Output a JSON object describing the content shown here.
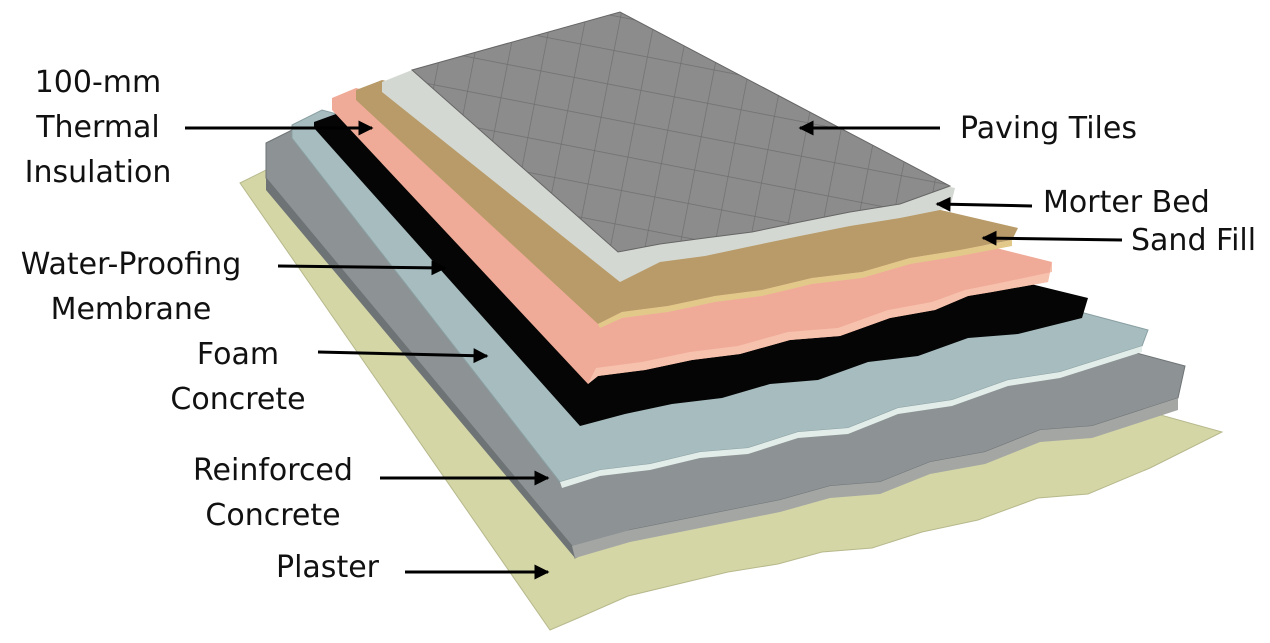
{
  "labels": {
    "thermal_insulation": [
      "100-mm",
      "Thermal",
      "Insulation"
    ],
    "paving_tiles": "Paving Tiles",
    "morter_bed": "Morter Bed",
    "sand_fill": "Sand Fill",
    "water_proofing": [
      "Water-Proofing",
      "Membrane"
    ],
    "foam_concrete": [
      "Foam",
      "Concrete"
    ],
    "reinforced_concrete": [
      "Reinforced",
      "Concrete"
    ],
    "plaster": "Plaster"
  },
  "colors": {
    "plaster": "#d4d6a6",
    "reinforced_concrete": "#858a8c",
    "foam_concrete": "#9eb5b8",
    "water_proofing": "#050505",
    "thermal_insulation": "#f2a995",
    "sand_fill": "#b59a6a",
    "morter_bed": "#d3d7d1",
    "paving_tiles": "#8b8b8b",
    "arrow": "#000000"
  }
}
